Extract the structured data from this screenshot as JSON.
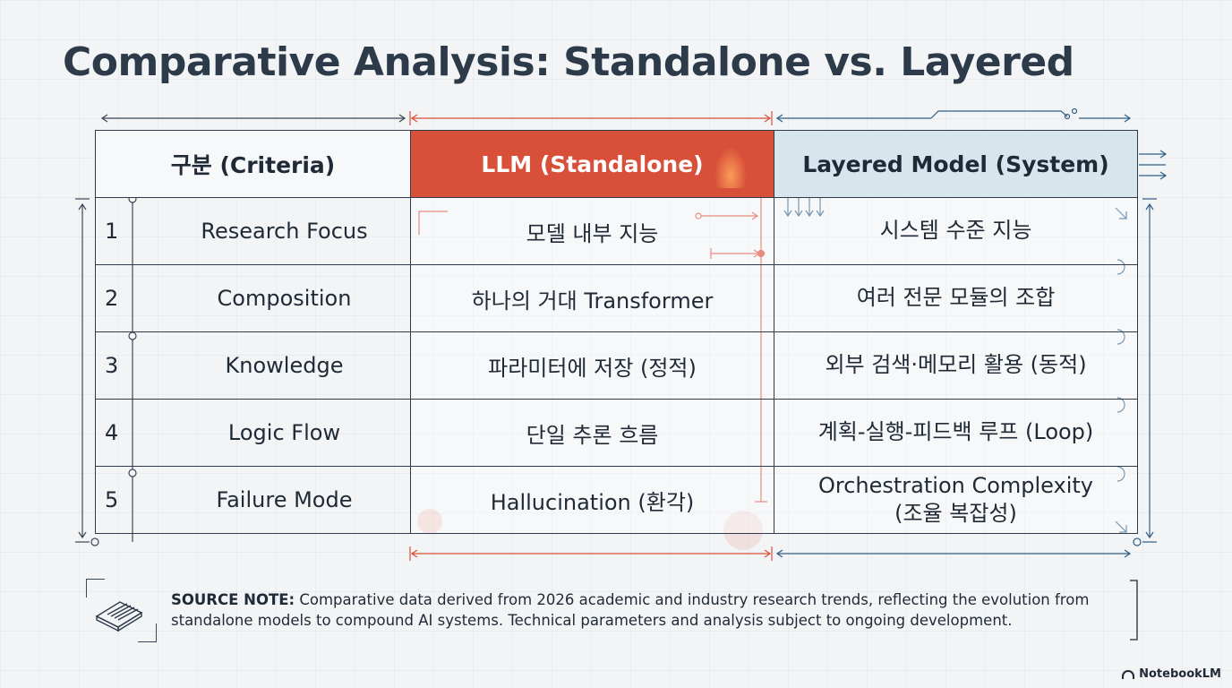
{
  "title": "Comparative Analysis: Standalone vs. Layered",
  "table": {
    "headers": {
      "criteria": "구분 (Criteria)",
      "llm": "LLM (Standalone)",
      "layered": "Layered Model (System)"
    },
    "rows": [
      {
        "num": "1",
        "criteria": "Research Focus",
        "llm": "모델 내부 지능",
        "layered": "시스템 수준 지능"
      },
      {
        "num": "2",
        "criteria": "Composition",
        "llm": "하나의 거대 Transformer",
        "layered": "여러 전문 모듈의 조합"
      },
      {
        "num": "3",
        "criteria": "Knowledge",
        "llm": "파라미터에 저장 (정적)",
        "layered": "외부 검색·메모리 활용 (동적)"
      },
      {
        "num": "4",
        "criteria": "Logic Flow",
        "llm": "단일 추론 흐름",
        "layered": "계획-실행-피드백 루프 (Loop)"
      },
      {
        "num": "5",
        "criteria": "Failure Mode",
        "llm": "Hallucination (환각)",
        "layered_line1": "Orchestration Complexity",
        "layered_line2": "(조율 복잡성)"
      }
    ]
  },
  "note": {
    "label": "SOURCE NOTE:",
    "text": "Comparative data derived from 2026 academic and industry research trends, reflecting the evolution from standalone models to compound AI systems. Technical parameters and analysis subject to ongoing development."
  },
  "brand": "NotebookLM",
  "colors": {
    "llm_header": "#d9503a",
    "layered_header": "#d6e6ec",
    "accent_blue": "#2f5f86",
    "accent_red": "#d9503a"
  }
}
